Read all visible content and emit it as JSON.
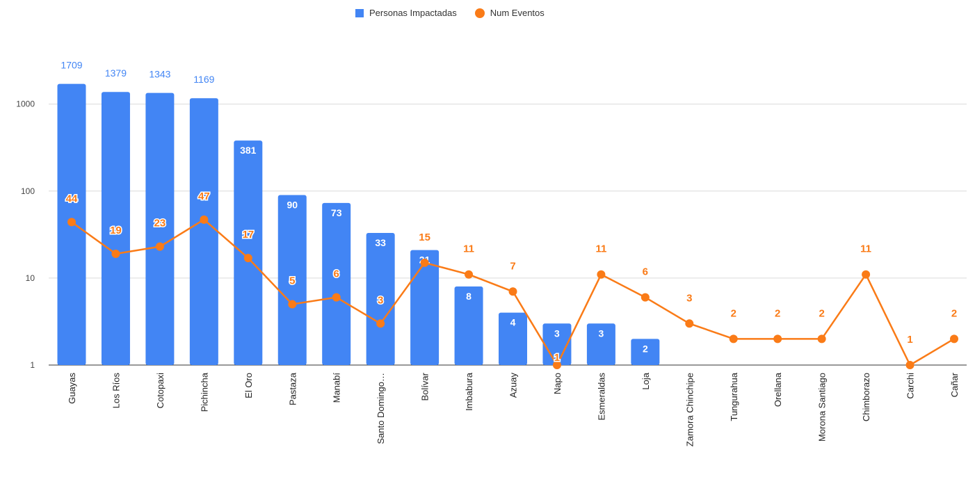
{
  "chart_data": {
    "type": "bar",
    "categories": [
      "Guayas",
      "Los Ríos",
      "Cotopaxi",
      "Pichincha",
      "El Oro",
      "Pastaza",
      "Manabí",
      "Santo Domingo…",
      "Bolívar",
      "Imbabura",
      "Azuay",
      "Napo",
      "Esmeraldas",
      "Loja",
      "Zamora Chinchipe",
      "Tungurahua",
      "Orellana",
      "Morona Santiago",
      "Chimborazo",
      "Carchi",
      "Cañar"
    ],
    "series": [
      {
        "name": "Personas Impactadas",
        "type": "bar",
        "color": "#4285f4",
        "values": [
          1709,
          1379,
          1343,
          1169,
          381,
          90,
          73,
          33,
          21,
          8,
          4,
          3,
          3,
          2,
          null,
          null,
          null,
          null,
          null,
          null,
          null
        ]
      },
      {
        "name": "Num Eventos",
        "type": "line",
        "color": "#fa7b17",
        "values": [
          44,
          19,
          23,
          47,
          17,
          5,
          6,
          3,
          15,
          11,
          7,
          1,
          11,
          6,
          3,
          2,
          2,
          2,
          11,
          1,
          2
        ]
      }
    ],
    "yscale": "log",
    "yticks": [
      1,
      10,
      100,
      1000
    ],
    "ytick_labels": [
      "1",
      "10",
      "100",
      "1000"
    ],
    "ylim": [
      1,
      2500
    ],
    "grid": true,
    "legend_position": "top"
  }
}
